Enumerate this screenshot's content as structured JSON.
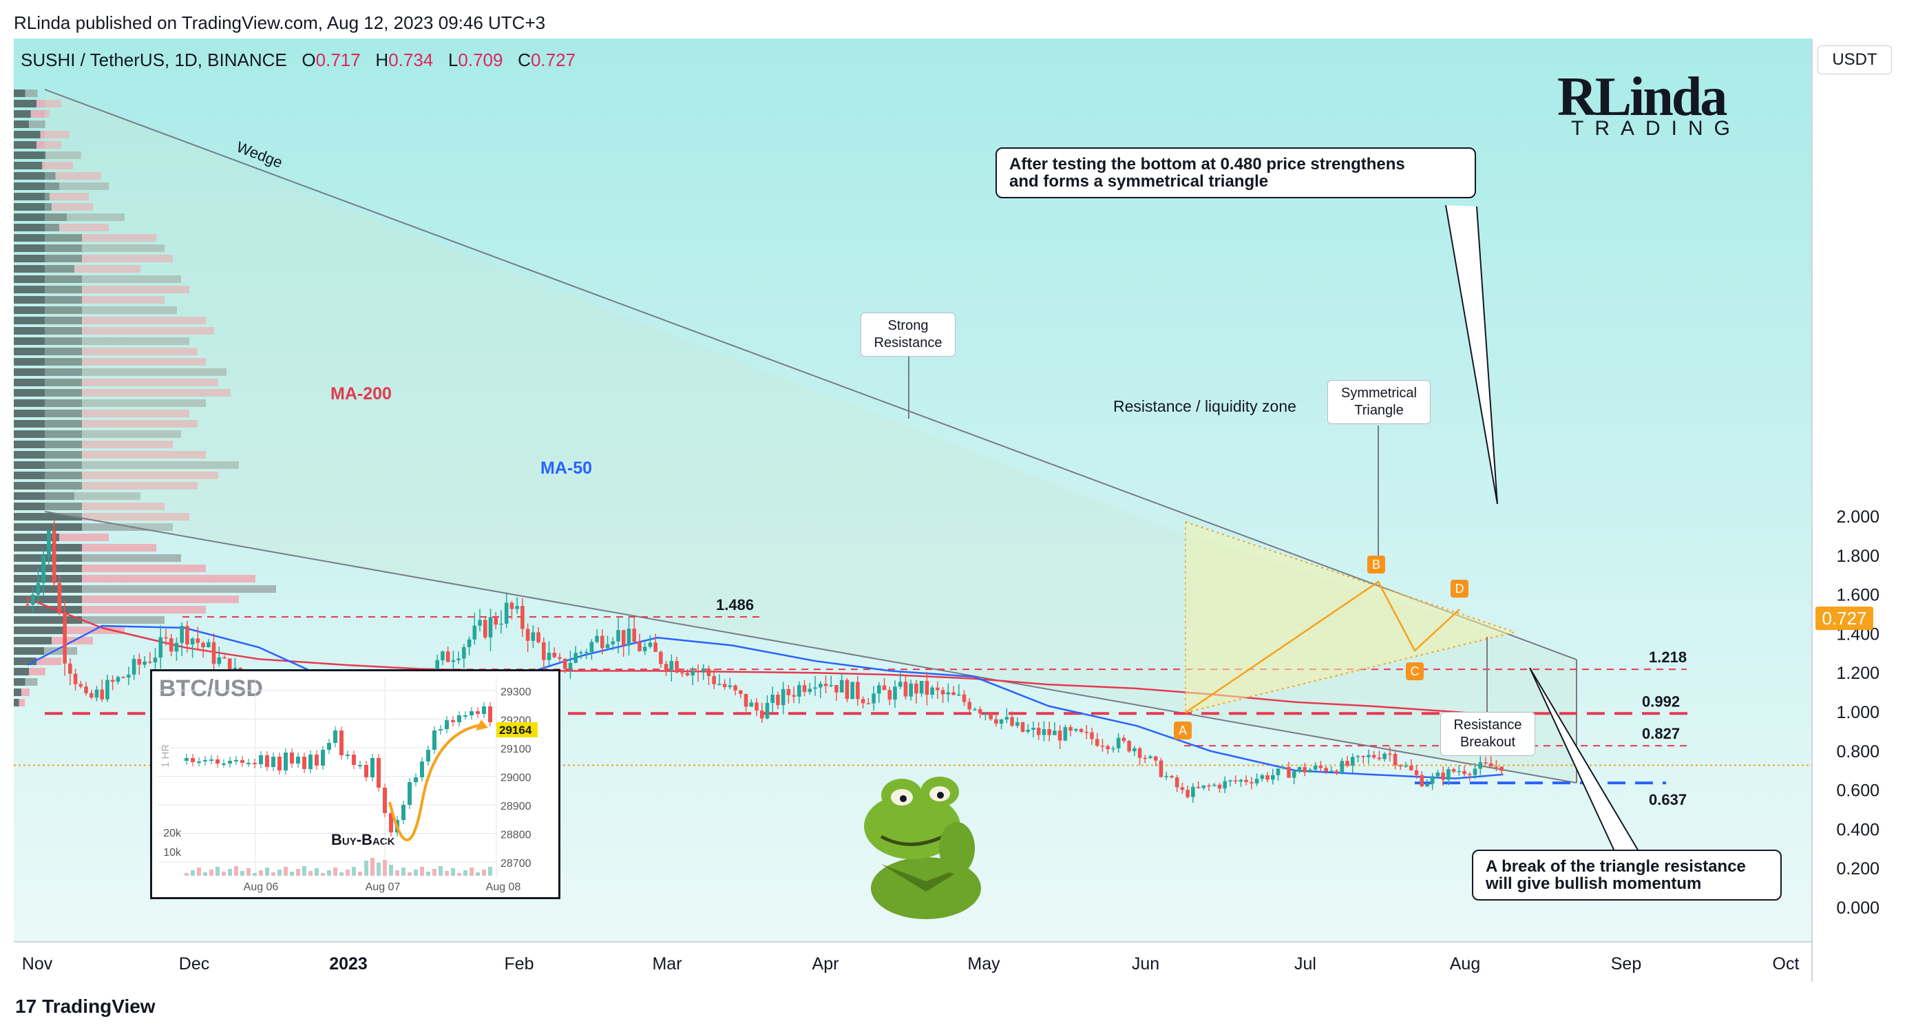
{
  "header": {
    "text": "RLinda published on TradingView.com, Aug 12, 2023 09:46 UTC+3"
  },
  "symbol": {
    "name": "SUSHI / TetherUS, 1D, BINANCE",
    "o_label": "O",
    "o": "0.717",
    "h_label": "H",
    "h": "0.734",
    "l_label": "L",
    "l": "0.709",
    "c_label": "C",
    "c": "0.727"
  },
  "currency_button": "USDT",
  "current_price": "0.727",
  "brand": {
    "big": "RLinda",
    "small": "TRADING"
  },
  "footer": {
    "logo_text": "TradingView",
    "logo_mark": "17"
  },
  "annotations": {
    "wedge": "Wedge",
    "ma200": "MA-200",
    "ma50": "MA-50",
    "liquidity_zone": "Resistance / liquidity zone",
    "strong_resistance_1": "Strong",
    "strong_resistance_2": "Resistance",
    "sym_triangle_1": "Symmetrical",
    "sym_triangle_2": "Triangle",
    "breakout_1": "Resistance",
    "breakout_2": "Breakout",
    "callout_top_1": "After testing the bottom at 0.480 price strengthens",
    "callout_top_2": "and forms a symmetrical triangle",
    "callout_bottom_1": "A break of the triangle resistance",
    "callout_bottom_2": "will give bullish momentum",
    "pt_a": "A",
    "pt_b": "B",
    "pt_c": "C",
    "pt_d": "D"
  },
  "level_labels": {
    "l1486": "1.486",
    "l1218": "1.218",
    "l0992": "0.992",
    "l0827": "0.827",
    "l0637": "0.637"
  },
  "btc_inset": {
    "title": "BTC/USD",
    "buyback": "Buy-Back",
    "axis_side": "1 HR",
    "price_badge": "29164",
    "y_ticks": [
      "29300",
      "29200",
      "29100",
      "29000",
      "28900",
      "28800",
      "28700"
    ],
    "vol_ticks": [
      "20k",
      "10k"
    ],
    "x_ticks": [
      "Aug 06",
      "Aug 07",
      "Aug 08"
    ]
  },
  "chart_data": {
    "type": "candlestick",
    "title": "SUSHI / TetherUS, 1D, BINANCE",
    "y_ticks": [
      "2.000",
      "1.800",
      "1.600",
      "1.400",
      "1.200",
      "1.000",
      "0.800",
      "0.600",
      "0.400",
      "0.200",
      "0.000"
    ],
    "x_ticks": [
      "Nov",
      "Dec",
      "2023",
      "Feb",
      "Mar",
      "Apr",
      "May",
      "Jun",
      "Jul",
      "Aug",
      "Sep",
      "Oct"
    ],
    "ylim": [
      -0.08,
      2.2
    ],
    "levels": [
      {
        "value": 1.486,
        "style": "dashed",
        "color": "#e53950"
      },
      {
        "value": 1.218,
        "style": "dashed",
        "color": "#e53950"
      },
      {
        "value": 0.992,
        "style": "dashed-thick",
        "color": "#e53950"
      },
      {
        "value": 0.827,
        "style": "dashed",
        "color": "#e53950"
      },
      {
        "value": 0.637,
        "style": "dashed-thick",
        "color": "#2962ff"
      },
      {
        "value": 0.727,
        "style": "dotted",
        "color": "#f7a21b"
      }
    ],
    "series": [
      {
        "name": "MA-200",
        "color": "#e53950",
        "x": [
          "Nov 01",
          "Nov 15",
          "Dec 01",
          "Dec 15",
          "Jan 01",
          "Jan 15",
          "Feb 01",
          "Feb 15",
          "Mar 01",
          "Mar 15",
          "Apr 01",
          "Apr 15",
          "May 01",
          "May 15",
          "Jun 01",
          "Jun 15",
          "Jul 01",
          "Jul 15",
          "Aug 01",
          "Aug 15"
        ],
        "y": [
          1.58,
          1.43,
          1.33,
          1.27,
          1.24,
          1.22,
          1.21,
          1.21,
          1.21,
          1.205,
          1.2,
          1.19,
          1.17,
          1.14,
          1.12,
          1.09,
          1.05,
          1.03,
          1.0,
          0.97
        ]
      },
      {
        "name": "MA-50",
        "color": "#2962ff",
        "x": [
          "Nov 01",
          "Nov 15",
          "Dec 01",
          "Dec 15",
          "Jan 01",
          "Jan 15",
          "Feb 01",
          "Feb 15",
          "Mar 01",
          "Mar 15",
          "Apr 01",
          "Apr 15",
          "May 01",
          "May 15",
          "Jun 01",
          "Jun 15",
          "Jul 01",
          "Jul 15",
          "Aug 01",
          "Aug 10"
        ],
        "y": [
          1.24,
          1.44,
          1.43,
          1.33,
          1.13,
          1.11,
          1.17,
          1.29,
          1.38,
          1.34,
          1.26,
          1.21,
          1.18,
          1.03,
          0.93,
          0.8,
          0.7,
          0.68,
          0.66,
          0.68
        ]
      },
      {
        "name": "SUSHI close",
        "color": "#131722",
        "x": [
          "Nov 01",
          "Nov 05",
          "Nov 08",
          "Nov 12",
          "Nov 20",
          "Dec 01",
          "Dec 10",
          "Dec 20",
          "Dec 30",
          "Jan 10",
          "Jan 20",
          "Feb 01",
          "Feb 10",
          "Feb 20",
          "Mar 01",
          "Mar 10",
          "Mar 20",
          "Apr 01",
          "Apr 10",
          "Apr 20",
          "May 01",
          "May 10",
          "May 20",
          "Jun 01",
          "Jun 10",
          "Jun 15",
          "Jul 01",
          "Jul 10",
          "Jul 18",
          "Jul 25",
          "Aug 01",
          "Aug 10"
        ],
        "y": [
          1.55,
          1.9,
          1.3,
          1.05,
          1.2,
          1.42,
          1.2,
          1.0,
          0.95,
          1.02,
          1.28,
          1.53,
          1.22,
          1.42,
          1.28,
          1.2,
          1.0,
          1.18,
          1.08,
          1.12,
          1.04,
          0.9,
          0.88,
          0.82,
          0.58,
          0.62,
          0.7,
          0.72,
          0.8,
          0.64,
          0.7,
          0.727
        ]
      }
    ],
    "last_price": 0.727,
    "grid": false,
    "legend": "none"
  }
}
